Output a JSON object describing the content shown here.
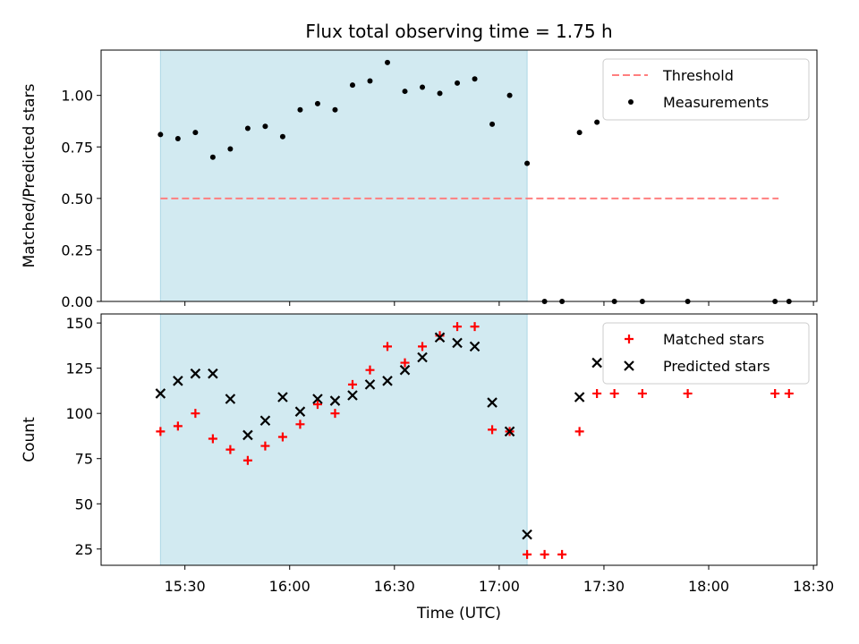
{
  "title": "Flux total observing time = 1.75 h",
  "colors": {
    "shade": "#add8e6",
    "threshold": "#ff7f7f",
    "matched": "#ff0000",
    "predicted": "#000000",
    "measurement": "#000000"
  },
  "chart_data": [
    {
      "type": "scatter",
      "ylabel": "Matched/Predicted stars",
      "xlabel": "",
      "ylim": [
        0,
        1.22
      ],
      "y_ticks": [
        "0.00",
        "0.25",
        "0.50",
        "0.75",
        "1.00"
      ],
      "shaded_time_range": [
        "15:23",
        "17:08"
      ],
      "threshold": {
        "value": 0.5,
        "x_range": [
          "15:23",
          "18:20"
        ]
      },
      "legend": {
        "position": "top-right",
        "entries": [
          "Threshold",
          "Measurements"
        ]
      },
      "series": [
        {
          "name": "Measurements",
          "x": [
            "15:23",
            "15:28",
            "15:33",
            "15:38",
            "15:43",
            "15:48",
            "15:53",
            "15:58",
            "16:03",
            "16:08",
            "16:13",
            "16:18",
            "16:23",
            "16:28",
            "16:33",
            "16:38",
            "16:43",
            "16:48",
            "16:53",
            "16:58",
            "17:03",
            "17:08",
            "17:13",
            "17:18",
            "17:23",
            "17:28",
            "17:33",
            "17:41",
            "17:54",
            "18:19",
            "18:23"
          ],
          "y": [
            0.81,
            0.79,
            0.82,
            0.7,
            0.74,
            0.84,
            0.85,
            0.8,
            0.93,
            0.96,
            0.93,
            1.05,
            1.07,
            1.16,
            1.02,
            1.04,
            1.01,
            1.06,
            1.08,
            0.86,
            1.0,
            0.67,
            0.0,
            0.0,
            0.82,
            0.87,
            0.0,
            0.0,
            0.0,
            0.0,
            0.0
          ]
        }
      ]
    },
    {
      "type": "scatter",
      "ylabel": "Count",
      "xlabel": "Time (UTC)",
      "ylim": [
        16,
        155
      ],
      "y_ticks": [
        "25",
        "50",
        "75",
        "100",
        "125",
        "150"
      ],
      "x_ticks": [
        "15:30",
        "16:00",
        "16:30",
        "17:00",
        "17:30",
        "18:00",
        "18:30"
      ],
      "shaded_time_range": [
        "15:23",
        "17:08"
      ],
      "legend": {
        "position": "top-right",
        "entries": [
          "Matched stars",
          "Predicted stars"
        ]
      },
      "series": [
        {
          "name": "Matched stars",
          "marker": "plus",
          "x": [
            "15:23",
            "15:28",
            "15:33",
            "15:38",
            "15:43",
            "15:48",
            "15:53",
            "15:58",
            "16:03",
            "16:08",
            "16:13",
            "16:18",
            "16:23",
            "16:28",
            "16:33",
            "16:38",
            "16:43",
            "16:48",
            "16:53",
            "16:58",
            "17:03",
            "17:08",
            "17:13",
            "17:18",
            "17:23",
            "17:28",
            "17:33",
            "17:41",
            "17:54",
            "18:19",
            "18:23"
          ],
          "y": [
            90,
            93,
            100,
            86,
            80,
            74,
            82,
            87,
            94,
            105,
            100,
            116,
            124,
            137,
            128,
            137,
            143,
            148,
            148,
            91,
            90,
            22,
            22,
            22,
            90,
            111,
            111,
            111,
            111,
            111,
            111
          ]
        },
        {
          "name": "Predicted stars",
          "marker": "x",
          "x": [
            "15:23",
            "15:28",
            "15:33",
            "15:38",
            "15:43",
            "15:48",
            "15:53",
            "15:58",
            "16:03",
            "16:08",
            "16:13",
            "16:18",
            "16:23",
            "16:28",
            "16:33",
            "16:38",
            "16:43",
            "16:48",
            "16:53",
            "16:58",
            "17:03",
            "17:08",
            "17:23",
            "17:28"
          ],
          "y": [
            111,
            118,
            122,
            122,
            108,
            88,
            96,
            109,
            101,
            108,
            107,
            110,
            116,
            118,
            124,
            131,
            142,
            139,
            137,
            106,
            90,
            33,
            109,
            128
          ]
        }
      ]
    }
  ]
}
